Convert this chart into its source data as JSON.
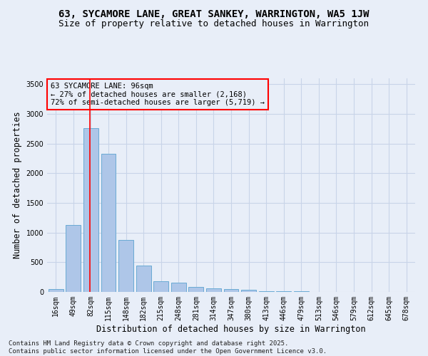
{
  "title": "63, SYCAMORE LANE, GREAT SANKEY, WARRINGTON, WA5 1JW",
  "subtitle": "Size of property relative to detached houses in Warrington",
  "xlabel": "Distribution of detached houses by size in Warrington",
  "ylabel": "Number of detached properties",
  "categories": [
    "16sqm",
    "49sqm",
    "82sqm",
    "115sqm",
    "148sqm",
    "182sqm",
    "215sqm",
    "248sqm",
    "281sqm",
    "314sqm",
    "347sqm",
    "380sqm",
    "413sqm",
    "446sqm",
    "479sqm",
    "513sqm",
    "546sqm",
    "579sqm",
    "612sqm",
    "645sqm",
    "678sqm"
  ],
  "values": [
    50,
    1130,
    2760,
    2330,
    880,
    440,
    175,
    160,
    90,
    60,
    50,
    35,
    15,
    10,
    8,
    5,
    5,
    4,
    3,
    2,
    2
  ],
  "bar_color": "#aec6e8",
  "bar_edge_color": "#6aaad4",
  "bg_color": "#e8eef8",
  "grid_color": "#c8d4e8",
  "annotation_text": "63 SYCAMORE LANE: 96sqm\n← 27% of detached houses are smaller (2,168)\n72% of semi-detached houses are larger (5,719) →",
  "ylim": [
    0,
    3600
  ],
  "yticks": [
    0,
    500,
    1000,
    1500,
    2000,
    2500,
    3000,
    3500
  ],
  "footer": "Contains HM Land Registry data © Crown copyright and database right 2025.\nContains public sector information licensed under the Open Government Licence v3.0.",
  "title_fontsize": 10,
  "subtitle_fontsize": 9,
  "xlabel_fontsize": 8.5,
  "ylabel_fontsize": 8.5,
  "tick_fontsize": 7,
  "footer_fontsize": 6.5,
  "annotation_fontsize": 7.5
}
